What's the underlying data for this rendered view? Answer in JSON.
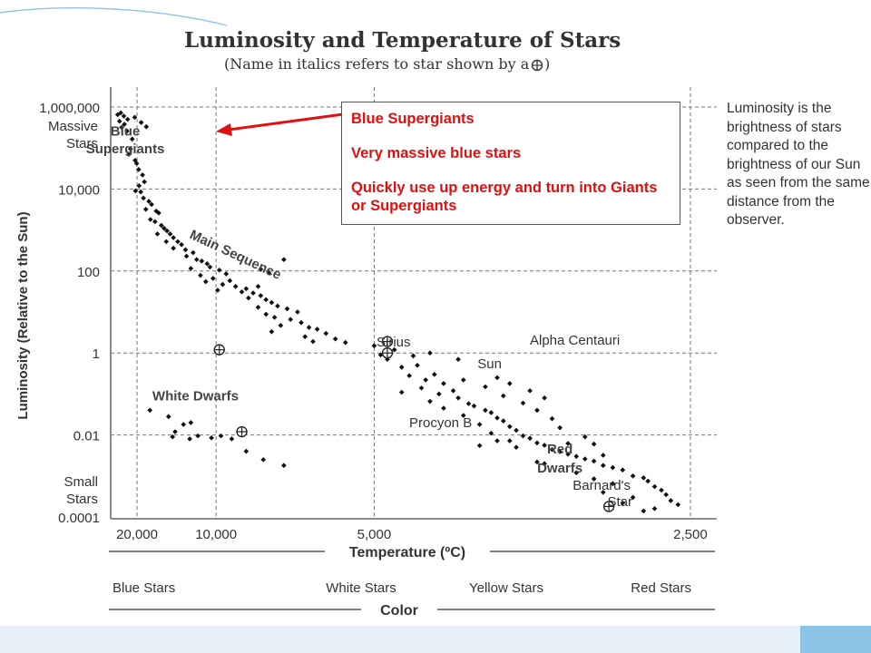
{
  "chart_data": {
    "type": "scatter",
    "title": "Luminosity and Temperature of Stars",
    "subtitle_part1": "(Name in italics refers to star shown by a",
    "subtitle_part2": ")",
    "xlabel": "Temperature (ºC)",
    "ylabel": "Luminosity (Relative to the Sun)",
    "x_scale": "reciprocal",
    "y_scale": "log",
    "xlim": [
      30000,
      2400
    ],
    "ylim": [
      0.0001,
      1000000
    ],
    "x_ticks": [
      {
        "value": 20000,
        "label": "20,000"
      },
      {
        "value": 10000,
        "label": "10,000"
      },
      {
        "value": 5000,
        "label": "5,000"
      },
      {
        "value": 2500,
        "label": "2,500"
      }
    ],
    "y_ticks": [
      {
        "value": 1000000,
        "label": "1,000,000"
      },
      {
        "value": 10000,
        "label": "10,000"
      },
      {
        "value": 100,
        "label": "100"
      },
      {
        "value": 1,
        "label": "1"
      },
      {
        "value": 0.01,
        "label": "0.01"
      },
      {
        "value": 0.0001,
        "label": "0.0001"
      }
    ],
    "y_extra_labels": {
      "top": [
        "Massive",
        "Stars"
      ],
      "bottom": [
        "Small",
        "Stars"
      ]
    },
    "grid": true,
    "color_axis": {
      "label": "Color",
      "categories": [
        "Blue Stars",
        "White Stars",
        "Yellow Stars",
        "Red Stars"
      ]
    },
    "region_labels": [
      {
        "text": "Blue",
        "x": 23500,
        "y": 200000
      },
      {
        "text": "Supergiants",
        "x": 23500,
        "y": 75000
      },
      {
        "text": "Main Sequence",
        "x": 9000,
        "y": 200
      },
      {
        "text": "White Dwarfs",
        "x": 11500,
        "y": 0.07
      },
      {
        "text": "Red",
        "x": 3150,
        "y": 0.0035
      },
      {
        "text": "Dwarfs",
        "x": 3150,
        "y": 0.0012
      }
    ],
    "named_stars": [
      {
        "name": "Sirius",
        "x": 9800,
        "y": 1.2
      },
      {
        "name": "Alpha Centauri",
        "x": 5200,
        "y": 1.2
      },
      {
        "name": "Sun",
        "x": 5200,
        "y": 0.5
      },
      {
        "name": "Procyon B",
        "x": 8600,
        "y": 0.012
      },
      {
        "name": "Barnard's",
        "x": 3100,
        "y": 0.0008
      },
      {
        "name": "Star",
        "x": 3100,
        "y": 0.00025
      }
    ],
    "points": [
      [
        26500,
        650000
      ],
      [
        25200,
        720000
      ],
      [
        24000,
        600000
      ],
      [
        22700,
        500000
      ],
      [
        25700,
        450000
      ],
      [
        23800,
        380000
      ],
      [
        24800,
        320000
      ],
      [
        22900,
        260000
      ],
      [
        20600,
        560000
      ],
      [
        19000,
        420000
      ],
      [
        17900,
        330000
      ],
      [
        21300,
        165000
      ],
      [
        21800,
        95000
      ],
      [
        22300,
        70000
      ],
      [
        20500,
        50000
      ],
      [
        20100,
        42000
      ],
      [
        19600,
        30000
      ],
      [
        18700,
        22000
      ],
      [
        18300,
        15000
      ],
      [
        19500,
        12000
      ],
      [
        20400,
        9000
      ],
      [
        19100,
        8500
      ],
      [
        18500,
        6000
      ],
      [
        17400,
        5000
      ],
      [
        16900,
        4200
      ],
      [
        18000,
        3200
      ],
      [
        16100,
        2900
      ],
      [
        15700,
        2600
      ],
      [
        17100,
        1800
      ],
      [
        16300,
        1600
      ],
      [
        15300,
        1300
      ],
      [
        14900,
        1100
      ],
      [
        14500,
        950
      ],
      [
        15900,
        800
      ],
      [
        14100,
        800
      ],
      [
        13700,
        650
      ],
      [
        14600,
        520
      ],
      [
        13200,
        520
      ],
      [
        12800,
        440
      ],
      [
        13700,
        360
      ],
      [
        12400,
        330
      ],
      [
        11700,
        280
      ],
      [
        12300,
        230
      ],
      [
        11400,
        190
      ],
      [
        11000,
        175
      ],
      [
        10600,
        150
      ],
      [
        11900,
        115
      ],
      [
        10400,
        125
      ],
      [
        9800,
        105
      ],
      [
        9400,
        85
      ],
      [
        11100,
        78
      ],
      [
        10200,
        66
      ],
      [
        9200,
        58
      ],
      [
        10700,
        55
      ],
      [
        9600,
        47
      ],
      [
        8900,
        42
      ],
      [
        8400,
        37
      ],
      [
        9900,
        34
      ],
      [
        8600,
        31
      ],
      [
        8100,
        29
      ],
      [
        7800,
        25
      ],
      [
        8300,
        22
      ],
      [
        7600,
        20
      ],
      [
        7400,
        17
      ],
      [
        7900,
        13
      ],
      [
        7200,
        14
      ],
      [
        6900,
        12
      ],
      [
        6600,
        10
      ],
      [
        7600,
        8.8
      ],
      [
        7300,
        7.4
      ],
      [
        6800,
        6.6
      ],
      [
        6500,
        5.5
      ],
      [
        7100,
        4.7
      ],
      [
        6300,
        4.2
      ],
      [
        6100,
        3.8
      ],
      [
        7400,
        3.3
      ],
      [
        5900,
        3
      ],
      [
        6400,
        2.5
      ],
      [
        5700,
        2.2
      ],
      [
        6200,
        1.9
      ],
      [
        5500,
        1.8
      ],
      [
        7800,
        110
      ],
      [
        7900,
        42
      ],
      [
        7500,
        90
      ],
      [
        7000,
        190
      ],
      [
        5000,
        1.5
      ],
      [
        4800,
        0.7
      ],
      [
        4700,
        1.2
      ],
      [
        4600,
        0.45
      ],
      [
        4500,
        0.28
      ],
      [
        4400,
        0.5
      ],
      [
        4300,
        0.22
      ],
      [
        4200,
        0.3
      ],
      [
        4100,
        0.18
      ],
      [
        4600,
        0.11
      ],
      [
        4350,
        0.14
      ],
      [
        4150,
        0.1
      ],
      [
        4000,
        0.12
      ],
      [
        3950,
        0.08
      ],
      [
        4250,
        0.066
      ],
      [
        3850,
        0.058
      ],
      [
        3800,
        0.051
      ],
      [
        4100,
        0.045
      ],
      [
        3700,
        0.04
      ],
      [
        3650,
        0.035
      ],
      [
        3900,
        0.03
      ],
      [
        3600,
        0.026
      ],
      [
        3550,
        0.022
      ],
      [
        3750,
        0.018
      ],
      [
        3500,
        0.016
      ],
      [
        3450,
        0.013
      ],
      [
        3650,
        0.011
      ],
      [
        3400,
        0.0095
      ],
      [
        3350,
        0.0083
      ],
      [
        3500,
        0.0072
      ],
      [
        3300,
        0.0064
      ],
      [
        3250,
        0.0056
      ],
      [
        3450,
        0.005
      ],
      [
        3200,
        0.0044
      ],
      [
        3150,
        0.0039
      ],
      [
        3100,
        0.0034
      ],
      [
        3050,
        0.003
      ],
      [
        3000,
        0.0026
      ],
      [
        2950,
        0.0023
      ],
      [
        3250,
        0.002
      ],
      [
        2900,
        0.0018
      ],
      [
        2850,
        0.0016
      ],
      [
        2800,
        0.0014
      ],
      [
        3050,
        0.0012
      ],
      [
        2750,
        0.001
      ],
      [
        2700,
        0.0009
      ],
      [
        2680,
        0.00075
      ],
      [
        2850,
        0.00065
      ],
      [
        2650,
        0.00055
      ],
      [
        2620,
        0.00045
      ],
      [
        2900,
        0.0004
      ],
      [
        2600,
        0.00035
      ],
      [
        2750,
        0.0003
      ],
      [
        2580,
        0.00025
      ],
      [
        2800,
        0.00022
      ],
      [
        2550,
        0.0002
      ],
      [
        2650,
        0.00016
      ],
      [
        2700,
        0.00014
      ],
      [
        3100,
        0.0062
      ],
      [
        3300,
        0.0022
      ],
      [
        2950,
        0.00085
      ],
      [
        2900,
        0.0032
      ],
      [
        3600,
        0.0072
      ],
      [
        3750,
        0.0055
      ],
      [
        4450,
        0.85
      ],
      [
        4900,
        0.9
      ],
      [
        4250,
        1.0
      ],
      [
        3950,
        0.7
      ],
      [
        3900,
        0.22
      ],
      [
        3700,
        0.15
      ],
      [
        3550,
        0.09
      ],
      [
        3400,
        0.06
      ],
      [
        3300,
        0.04
      ],
      [
        3200,
        0.025
      ],
      [
        3150,
        0.015
      ],
      [
        3000,
        0.009
      ],
      [
        2950,
        0.006
      ],
      [
        3600,
        0.25
      ],
      [
        3500,
        0.18
      ],
      [
        3350,
        0.12
      ],
      [
        3250,
        0.08
      ],
      [
        17200,
        0.04
      ],
      [
        14300,
        0.028
      ],
      [
        13500,
        0.012
      ],
      [
        12600,
        0.018
      ],
      [
        12000,
        0.008
      ],
      [
        11300,
        0.0095
      ],
      [
        10300,
        0.0085
      ],
      [
        9700,
        0.0095
      ],
      [
        9100,
        0.008
      ],
      [
        8700,
        0.011
      ],
      [
        8400,
        0.004
      ],
      [
        7700,
        0.0025
      ],
      [
        7000,
        0.0018
      ],
      [
        11900,
        0.02
      ],
      [
        13800,
        0.009
      ]
    ]
  },
  "callout": {
    "line1": "Blue Supergiants",
    "line2": "Very massive blue stars",
    "line3": "Quickly use up energy and turn into Giants or Supergiants"
  },
  "side_note": {
    "text": "Luminosity is the brightness of stars compared to the brightness of our Sun as seen from the same distance from the observer."
  },
  "colors": {
    "callout_text": "#e01010",
    "arrow": "#e01010",
    "points": "#111111",
    "grid": "#777777",
    "accent_bar": "#e8f1fa",
    "accent_corner": "#8bc4e6"
  }
}
